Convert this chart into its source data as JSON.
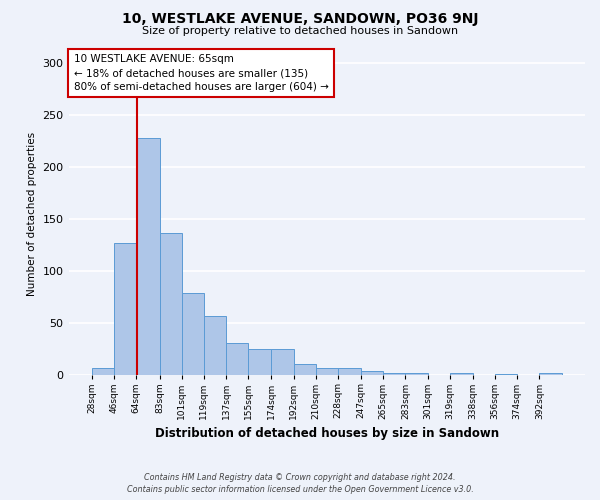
{
  "title": "10, WESTLAKE AVENUE, SANDOWN, PO36 9NJ",
  "subtitle": "Size of property relative to detached houses in Sandown",
  "xlabel": "Distribution of detached houses by size in Sandown",
  "ylabel": "Number of detached properties",
  "bin_labels": [
    "28sqm",
    "46sqm",
    "64sqm",
    "83sqm",
    "101sqm",
    "119sqm",
    "137sqm",
    "155sqm",
    "174sqm",
    "192sqm",
    "210sqm",
    "228sqm",
    "247sqm",
    "265sqm",
    "283sqm",
    "301sqm",
    "319sqm",
    "338sqm",
    "356sqm",
    "374sqm",
    "392sqm"
  ],
  "bin_edges": [
    28,
    46,
    64,
    83,
    101,
    119,
    137,
    155,
    174,
    192,
    210,
    228,
    247,
    265,
    283,
    301,
    319,
    338,
    356,
    374,
    392
  ],
  "bar_heights": [
    7,
    127,
    228,
    137,
    79,
    57,
    31,
    25,
    25,
    11,
    7,
    7,
    4,
    2,
    2,
    0,
    2,
    0,
    1,
    0,
    2
  ],
  "bar_color": "#aec6e8",
  "bar_edge_color": "#5b9bd5",
  "vline_color": "#cc0000",
  "vline_x": 65,
  "ylim": [
    0,
    310
  ],
  "yticks": [
    0,
    50,
    100,
    150,
    200,
    250,
    300
  ],
  "bg_color": "#eef2fa",
  "grid_color": "#ffffff",
  "annotation_line1": "10 WESTLAKE AVENUE: 65sqm",
  "annotation_line2": "← 18% of detached houses are smaller (135)",
  "annotation_line3": "80% of semi-detached houses are larger (604) →",
  "annotation_box_facecolor": "#ffffff",
  "annotation_box_edgecolor": "#cc0000",
  "footer_line1": "Contains HM Land Registry data © Crown copyright and database right 2024.",
  "footer_line2": "Contains public sector information licensed under the Open Government Licence v3.0."
}
